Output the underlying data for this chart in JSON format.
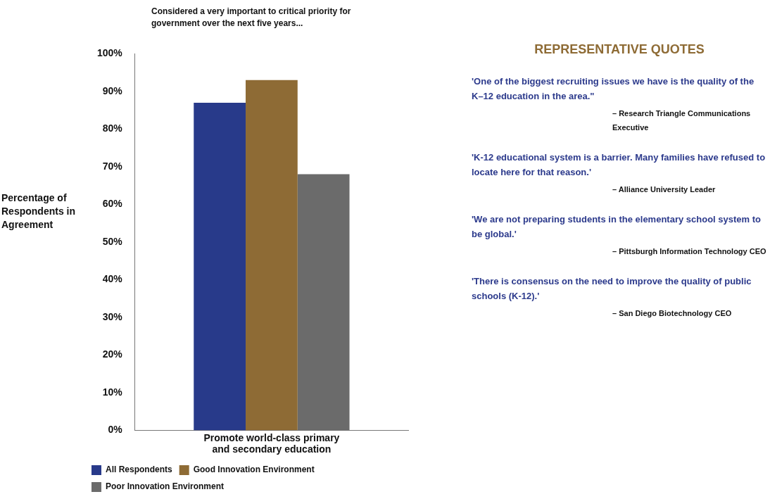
{
  "chart_data": {
    "type": "bar",
    "title": "Considered a very important to critical priority for government over the next five years...",
    "ylabel": "Percentage of Respondents in Agreement",
    "categories": [
      "Promote world-class primary and secondary education"
    ],
    "series": [
      {
        "name": "All Respondents",
        "color": "#283a8a",
        "values": [
          87
        ]
      },
      {
        "name": "Good Innovation Environment",
        "color": "#8e6b35",
        "values": [
          93
        ]
      },
      {
        "name": "Poor Innovation Environment",
        "color": "#6b6b6b",
        "values": [
          68
        ]
      }
    ],
    "ylim": [
      0,
      100
    ],
    "yticks": [
      {
        "value": 0,
        "label": "0%"
      },
      {
        "value": 10,
        "label": "10%"
      },
      {
        "value": 20,
        "label": "20%"
      },
      {
        "value": 30,
        "label": "30%"
      },
      {
        "value": 40,
        "label": "40%"
      },
      {
        "value": 50,
        "label": "50%"
      },
      {
        "value": 60,
        "label": "60%"
      },
      {
        "value": 70,
        "label": "70%"
      },
      {
        "value": 80,
        "label": "80%"
      },
      {
        "value": 90,
        "label": "90%"
      },
      {
        "value": 100,
        "label": "100%"
      }
    ],
    "grid": false,
    "legend": "bottom left",
    "annotations": [
      "REPRESENTATIVE QUOTES",
      "'One of the biggest recruiting issues we have is the quality of the K–12 education in the area.\"",
      "– Research Triangle Communications Executive",
      "'K-12 educational system is a barrier.  Many families have refused to locate here for that reason.'",
      "– Alliance University Leader",
      "'We are not preparing students in the elementary school system to be global.'",
      "– Pittsburgh Information Technology CEO",
      "'There is consensus on the need to improve the quality of public schools (K-12).'",
      "– San Diego Biotechnology CEO"
    ]
  }
}
